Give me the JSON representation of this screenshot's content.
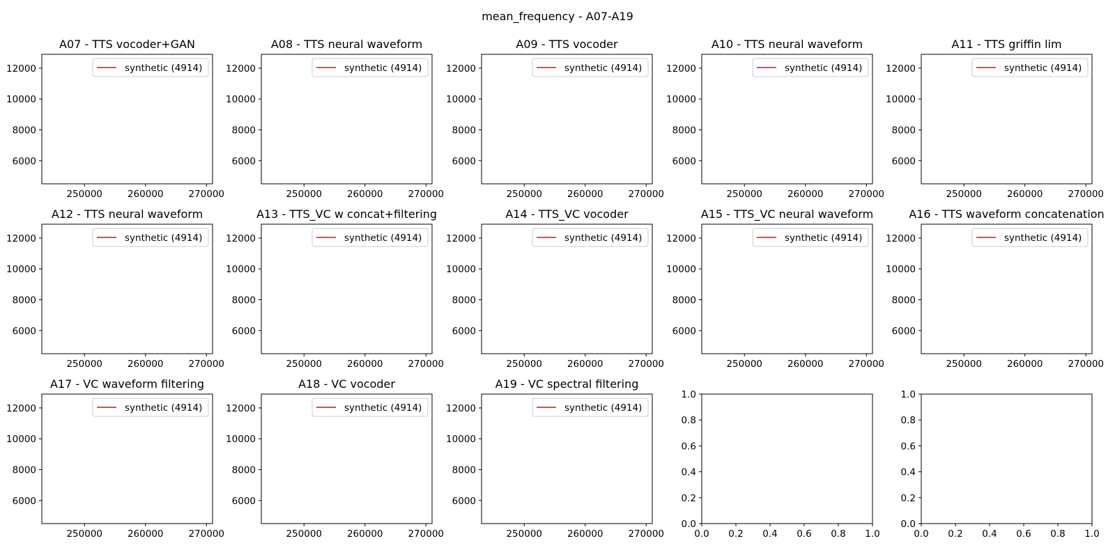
{
  "chart_data": {
    "type": "line",
    "title": "mean_frequency - A07-A19",
    "panels": [
      {
        "title": "A07 - TTS vocoder+GAN",
        "legend": "synthetic (4914)",
        "xticks": [
          250000,
          260000,
          270000
        ],
        "yticks": [
          6000,
          8000,
          10000,
          12000
        ],
        "xlim": [
          243000,
          271000
        ],
        "ylim": [
          4500,
          12900
        ]
      },
      {
        "title": "A08 - TTS neural waveform",
        "legend": "synthetic (4914)",
        "xticks": [
          250000,
          260000,
          270000
        ],
        "yticks": [
          6000,
          8000,
          10000,
          12000
        ],
        "xlim": [
          243000,
          271000
        ],
        "ylim": [
          4500,
          12900
        ]
      },
      {
        "title": "A09 - TTS vocoder",
        "legend": "synthetic (4914)",
        "xticks": [
          250000,
          260000,
          270000
        ],
        "yticks": [
          6000,
          8000,
          10000,
          12000
        ],
        "xlim": [
          243000,
          271000
        ],
        "ylim": [
          4500,
          12900
        ]
      },
      {
        "title": "A10 - TTS neural waveform",
        "legend": "synthetic (4914)",
        "xticks": [
          250000,
          260000,
          270000
        ],
        "yticks": [
          6000,
          8000,
          10000,
          12000
        ],
        "xlim": [
          243000,
          271000
        ],
        "ylim": [
          4500,
          12900
        ]
      },
      {
        "title": "A11 - TTS griffin lim",
        "legend": "synthetic (4914)",
        "xticks": [
          250000,
          260000,
          270000
        ],
        "yticks": [
          6000,
          8000,
          10000,
          12000
        ],
        "xlim": [
          243000,
          271000
        ],
        "ylim": [
          4500,
          12900
        ]
      },
      {
        "title": "A12 - TTS neural waveform",
        "legend": "synthetic (4914)",
        "xticks": [
          250000,
          260000,
          270000
        ],
        "yticks": [
          6000,
          8000,
          10000,
          12000
        ],
        "xlim": [
          243000,
          271000
        ],
        "ylim": [
          4500,
          12900
        ]
      },
      {
        "title": "A13 - TTS_VC w concat+filtering",
        "legend": "synthetic (4914)",
        "xticks": [
          250000,
          260000,
          270000
        ],
        "yticks": [
          6000,
          8000,
          10000,
          12000
        ],
        "xlim": [
          243000,
          271000
        ],
        "ylim": [
          4500,
          12900
        ]
      },
      {
        "title": "A14 - TTS_VC vocoder",
        "legend": "synthetic (4914)",
        "xticks": [
          250000,
          260000,
          270000
        ],
        "yticks": [
          6000,
          8000,
          10000,
          12000
        ],
        "xlim": [
          243000,
          271000
        ],
        "ylim": [
          4500,
          12900
        ]
      },
      {
        "title": "A15 - TTS_VC neural waveform",
        "legend": "synthetic (4914)",
        "xticks": [
          250000,
          260000,
          270000
        ],
        "yticks": [
          6000,
          8000,
          10000,
          12000
        ],
        "xlim": [
          243000,
          271000
        ],
        "ylim": [
          4500,
          12900
        ]
      },
      {
        "title": "A16 - TTS waveform concatenation",
        "legend": "synthetic (4914)",
        "xticks": [
          250000,
          260000,
          270000
        ],
        "yticks": [
          6000,
          8000,
          10000,
          12000
        ],
        "xlim": [
          243000,
          271000
        ],
        "ylim": [
          4500,
          12900
        ]
      },
      {
        "title": "A17 - VC waveform filtering",
        "legend": "synthetic (4914)",
        "xticks": [
          250000,
          260000,
          270000
        ],
        "yticks": [
          6000,
          8000,
          10000,
          12000
        ],
        "xlim": [
          243000,
          271000
        ],
        "ylim": [
          4500,
          12900
        ]
      },
      {
        "title": "A18 - VC vocoder",
        "legend": "synthetic (4914)",
        "xticks": [
          250000,
          260000,
          270000
        ],
        "yticks": [
          6000,
          8000,
          10000,
          12000
        ],
        "xlim": [
          243000,
          271000
        ],
        "ylim": [
          4500,
          12900
        ]
      },
      {
        "title": "A19 - VC spectral filtering",
        "legend": "synthetic (4914)",
        "xticks": [
          250000,
          260000,
          270000
        ],
        "yticks": [
          6000,
          8000,
          10000,
          12000
        ],
        "xlim": [
          243000,
          271000
        ],
        "ylim": [
          4500,
          12900
        ]
      },
      {
        "title": "",
        "legend": "",
        "xticks": [
          "0.0",
          "0.2",
          "0.4",
          "0.6",
          "0.8",
          "1.0"
        ],
        "yticks": [
          "0.0",
          "0.2",
          "0.4",
          "0.6",
          "0.8",
          "1.0"
        ],
        "xlim": [
          0,
          1
        ],
        "ylim": [
          0,
          1
        ]
      },
      {
        "title": "",
        "legend": "",
        "xticks": [
          "0.0",
          "0.2",
          "0.4",
          "0.6",
          "0.8",
          "1.0"
        ],
        "yticks": [
          "0.0",
          "0.2",
          "0.4",
          "0.6",
          "0.8",
          "1.0"
        ],
        "xlim": [
          0,
          1
        ],
        "ylim": [
          0,
          1
        ]
      }
    ],
    "legend_placement": "upper-right",
    "series_color": "#ff0000",
    "grid": false
  }
}
